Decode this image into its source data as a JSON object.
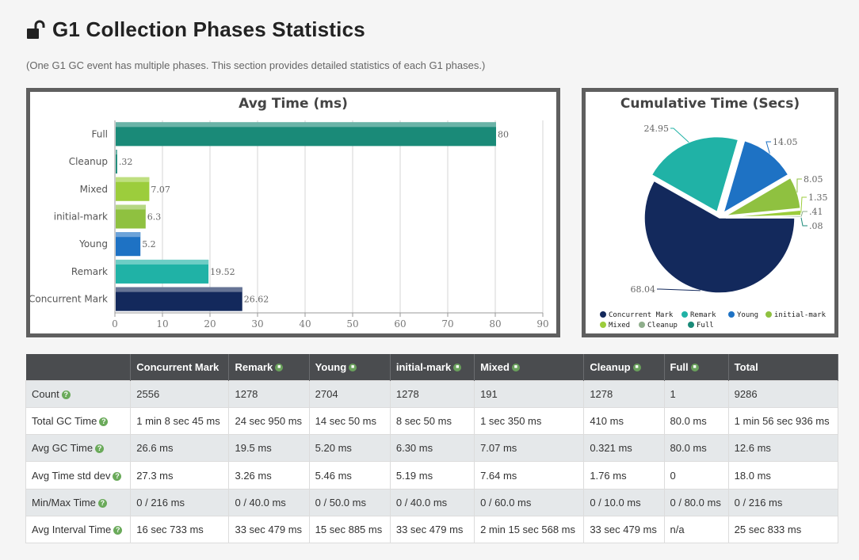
{
  "header": {
    "title": "G1 Collection Phases Statistics",
    "subtitle": "(One G1 GC event has multiple phases. This section provides detailed statistics of each G1 phases.)"
  },
  "chart_data": [
    {
      "type": "bar",
      "orientation": "horizontal",
      "title": "Avg Time (ms)",
      "categories": [
        "Full",
        "Cleanup",
        "Mixed",
        "initial-mark",
        "Young",
        "Remark",
        "Concurrent Mark"
      ],
      "values": [
        80,
        0.32,
        7.07,
        6.3,
        5.2,
        19.52,
        26.62
      ],
      "value_labels": [
        "80",
        ".32",
        "7.07",
        "6.3",
        "5.2",
        "19.52",
        "26.62"
      ],
      "colors": [
        "#1a8a78",
        "#1a8a78",
        "#9ccd3c",
        "#8fc140",
        "#1e72c4",
        "#20b2a6",
        "#13295c"
      ],
      "xlim": [
        0,
        90
      ],
      "xticks": [
        0,
        10,
        20,
        30,
        40,
        50,
        60,
        70,
        80,
        90
      ],
      "grid": true
    },
    {
      "type": "pie",
      "title": "Cumulative Time (Secs)",
      "series": [
        {
          "name": "Concurrent Mark",
          "value": 68.04,
          "label": "68.04",
          "color": "#13295c"
        },
        {
          "name": "Remark",
          "value": 24.95,
          "label": "24.95",
          "color": "#20b2a6"
        },
        {
          "name": "Young",
          "value": 14.05,
          "label": "14.05",
          "color": "#1e72c4"
        },
        {
          "name": "initial-mark",
          "value": 8.05,
          "label": "8.05",
          "color": "#8fc140"
        },
        {
          "name": "Mixed",
          "value": 1.35,
          "label": "1.35",
          "color": "#9ccd3c"
        },
        {
          "name": "Cleanup",
          "value": 0.41,
          "label": ".41",
          "color": "#8fae8c"
        },
        {
          "name": "Full",
          "value": 0.08,
          "label": ".08",
          "color": "#1a8a78"
        }
      ],
      "legend": "bottom"
    }
  ],
  "table": {
    "headers": [
      "",
      "Concurrent Mark",
      "Remark",
      "Young",
      "initial-mark",
      "Mixed",
      "Cleanup",
      "Full",
      "Total"
    ],
    "header_icons": [
      false,
      false,
      true,
      true,
      true,
      true,
      true,
      true,
      false
    ],
    "rows": [
      {
        "label": "Count",
        "cells": [
          "2556",
          "1278",
          "2704",
          "1278",
          "191",
          "1278",
          "1",
          "9286"
        ]
      },
      {
        "label": "Total GC Time",
        "cells": [
          "1 min 8 sec 45 ms",
          "24 sec 950 ms",
          "14 sec 50 ms",
          "8 sec 50 ms",
          "1 sec 350 ms",
          "410 ms",
          "80.0 ms",
          "1 min 56 sec 936 ms"
        ]
      },
      {
        "label": "Avg GC Time",
        "cells": [
          "26.6 ms",
          "19.5 ms",
          "5.20 ms",
          "6.30 ms",
          "7.07 ms",
          "0.321 ms",
          "80.0 ms",
          "12.6 ms"
        ]
      },
      {
        "label": "Avg Time std dev",
        "cells": [
          "27.3 ms",
          "3.26 ms",
          "5.46 ms",
          "5.19 ms",
          "7.64 ms",
          "1.76 ms",
          "0",
          "18.0 ms"
        ]
      },
      {
        "label": "Min/Max Time",
        "cells": [
          "0 / 216 ms",
          "0 / 40.0 ms",
          "0 / 50.0 ms",
          "0 / 40.0 ms",
          "0 / 60.0 ms",
          "0 / 10.0 ms",
          "0 / 80.0 ms",
          "0 / 216 ms"
        ]
      },
      {
        "label": "Avg Interval Time",
        "cells": [
          "16 sec 733 ms",
          "33 sec 479 ms",
          "15 sec 885 ms",
          "33 sec 479 ms",
          "2 min 15 sec 568 ms",
          "33 sec 479 ms",
          "n/a",
          "25 sec 833 ms"
        ]
      }
    ],
    "help_icon": "question-icon",
    "header_icon": "info-icon"
  }
}
